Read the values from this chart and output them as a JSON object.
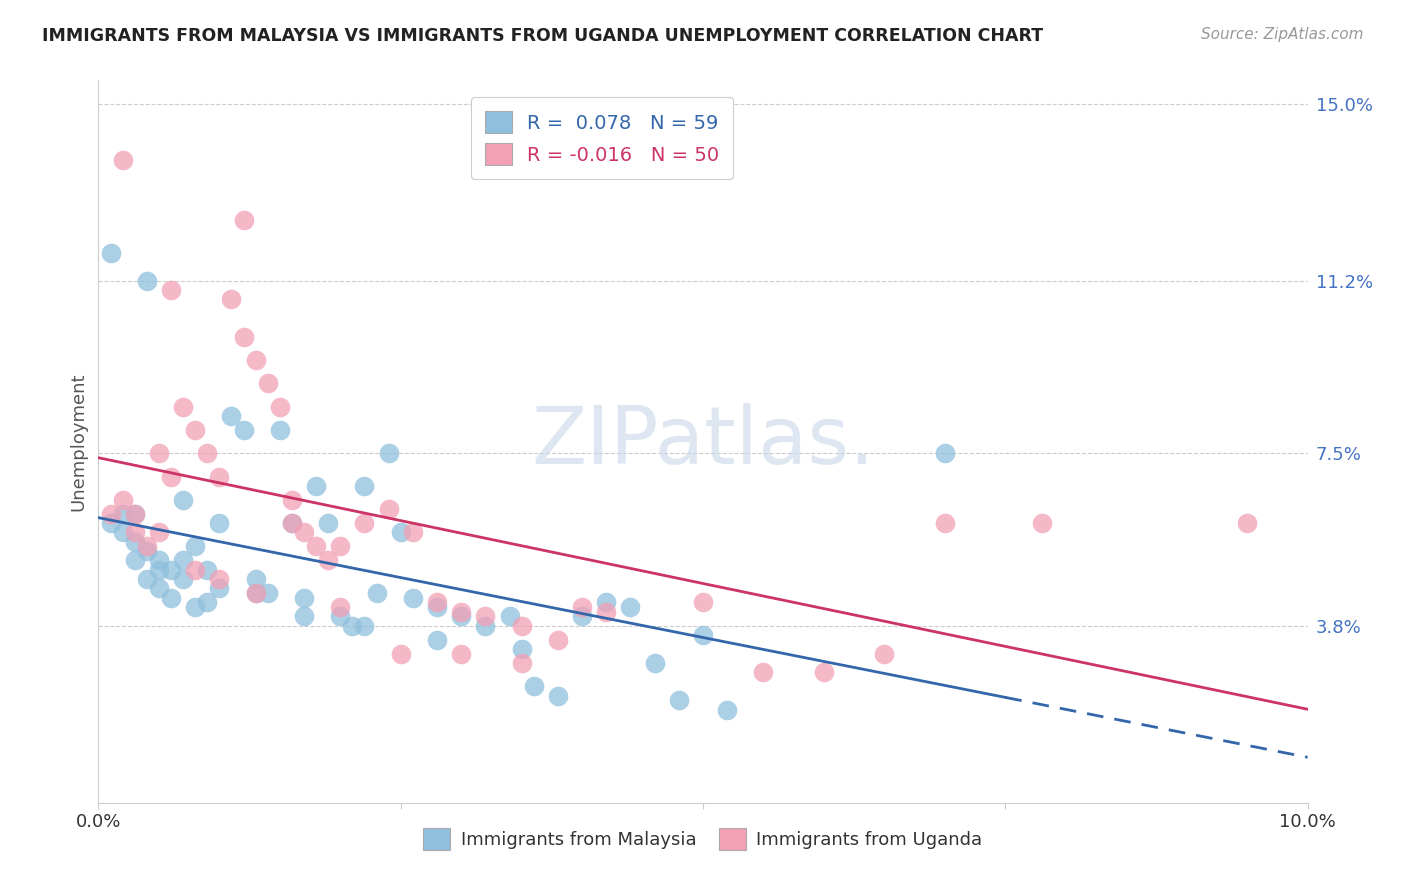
{
  "title": "IMMIGRANTS FROM MALAYSIA VS IMMIGRANTS FROM UGANDA UNEMPLOYMENT CORRELATION CHART",
  "source": "Source: ZipAtlas.com",
  "ylabel": "Unemployment",
  "xlim": [
    0.0,
    0.1
  ],
  "ylim": [
    0.0,
    0.155
  ],
  "ytick_vals": [
    0.038,
    0.075,
    0.112,
    0.15
  ],
  "ytick_labels": [
    "3.8%",
    "7.5%",
    "11.2%",
    "15.0%"
  ],
  "xtick_vals": [
    0.0,
    0.025,
    0.05,
    0.075,
    0.1
  ],
  "xtick_labels": [
    "0.0%",
    "",
    "",
    "",
    "10.0%"
  ],
  "malaysia_color": "#8FBFDC",
  "uganda_color": "#F2A0B5",
  "malaysia_R": 0.078,
  "malaysia_N": 59,
  "uganda_R": -0.016,
  "uganda_N": 50,
  "malaysia_line_color": "#3366AA",
  "uganda_line_color": "#CC3366",
  "background_color": "#FFFFFF",
  "grid_color": "#CCCCCC",
  "watermark_color": "#C8D8E8",
  "right_tick_color": "#4472C4",
  "malaysia_x": [
    0.001,
    0.002,
    0.003,
    0.003,
    0.004,
    0.004,
    0.005,
    0.005,
    0.006,
    0.006,
    0.007,
    0.007,
    0.008,
    0.008,
    0.009,
    0.01,
    0.01,
    0.011,
    0.012,
    0.013,
    0.014,
    0.015,
    0.016,
    0.017,
    0.018,
    0.019,
    0.02,
    0.021,
    0.022,
    0.023,
    0.024,
    0.025,
    0.026,
    0.028,
    0.03,
    0.032,
    0.034,
    0.036,
    0.038,
    0.04,
    0.042,
    0.044,
    0.046,
    0.048,
    0.05,
    0.052,
    0.002,
    0.003,
    0.005,
    0.007,
    0.009,
    0.013,
    0.017,
    0.022,
    0.028,
    0.035,
    0.07,
    0.001,
    0.004
  ],
  "malaysia_y": [
    0.06,
    0.058,
    0.062,
    0.056,
    0.054,
    0.048,
    0.052,
    0.046,
    0.05,
    0.044,
    0.065,
    0.048,
    0.055,
    0.042,
    0.05,
    0.06,
    0.046,
    0.083,
    0.08,
    0.048,
    0.045,
    0.08,
    0.06,
    0.044,
    0.068,
    0.06,
    0.04,
    0.038,
    0.068,
    0.045,
    0.075,
    0.058,
    0.044,
    0.042,
    0.04,
    0.038,
    0.04,
    0.025,
    0.023,
    0.04,
    0.043,
    0.042,
    0.03,
    0.022,
    0.036,
    0.02,
    0.062,
    0.052,
    0.05,
    0.052,
    0.043,
    0.045,
    0.04,
    0.038,
    0.035,
    0.033,
    0.075,
    0.118,
    0.112
  ],
  "uganda_x": [
    0.001,
    0.002,
    0.003,
    0.004,
    0.005,
    0.006,
    0.007,
    0.008,
    0.009,
    0.01,
    0.011,
    0.012,
    0.013,
    0.014,
    0.015,
    0.016,
    0.017,
    0.018,
    0.019,
    0.02,
    0.022,
    0.024,
    0.026,
    0.028,
    0.03,
    0.032,
    0.035,
    0.038,
    0.04,
    0.042,
    0.003,
    0.005,
    0.008,
    0.01,
    0.013,
    0.016,
    0.02,
    0.025,
    0.03,
    0.035,
    0.05,
    0.055,
    0.06,
    0.065,
    0.07,
    0.078,
    0.002,
    0.006,
    0.012,
    0.095
  ],
  "uganda_y": [
    0.062,
    0.065,
    0.058,
    0.055,
    0.075,
    0.07,
    0.085,
    0.08,
    0.075,
    0.07,
    0.108,
    0.1,
    0.095,
    0.09,
    0.085,
    0.06,
    0.058,
    0.055,
    0.052,
    0.042,
    0.06,
    0.063,
    0.058,
    0.043,
    0.041,
    0.04,
    0.038,
    0.035,
    0.042,
    0.041,
    0.062,
    0.058,
    0.05,
    0.048,
    0.045,
    0.065,
    0.055,
    0.032,
    0.032,
    0.03,
    0.043,
    0.028,
    0.028,
    0.032,
    0.06,
    0.06,
    0.138,
    0.11,
    0.125,
    0.06
  ]
}
